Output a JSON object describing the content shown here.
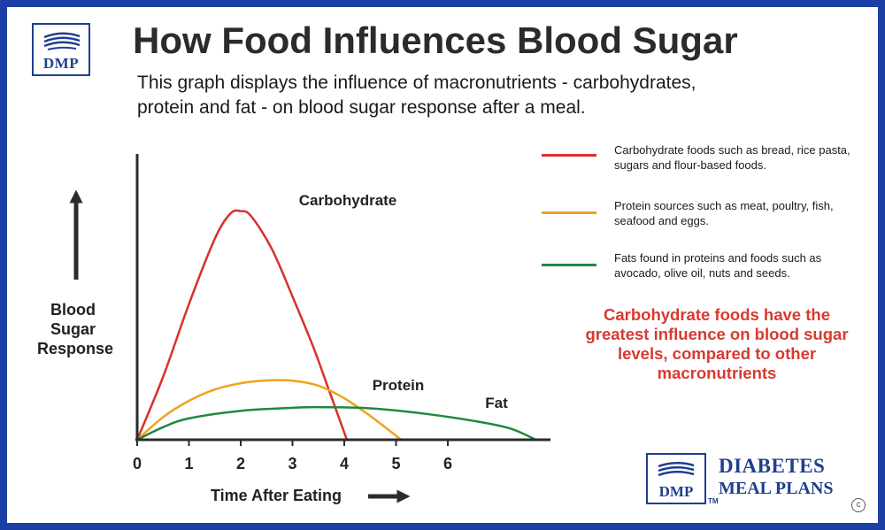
{
  "title": "How Food Influences Blood Sugar",
  "subtitle": "This graph displays the influence of macronutrients - carbohydrates, protein and fat - on blood sugar response after a meal.",
  "logo": {
    "mark": "DMP",
    "brand_line1": "DIABETES",
    "brand_line2": "MEAL PLANS",
    "trademark": "TM",
    "copyright": "c"
  },
  "colors": {
    "carbohydrate": "#d8302b",
    "protein": "#f0a21f",
    "fat": "#1e8a3c",
    "frame": "#1b3fa6",
    "brand": "#1f3f8f",
    "callout": "#d83a2f"
  },
  "legend": [
    {
      "key": "carbohydrate",
      "text": "Carbohydrate foods such as bread, rice pasta, sugars and flour-based foods."
    },
    {
      "key": "protein",
      "text": "Protein sources such as meat, poultry, fish, seafood and eggs."
    },
    {
      "key": "fat",
      "text": "Fats found in proteins and foods such as avocado, olive oil, nuts and seeds."
    }
  ],
  "callout": "Carbohydrate foods have the greatest influence on blood sugar levels, compared to other macronutrients",
  "chart_data": {
    "type": "line",
    "xlabel": "Time After Eating",
    "ylabel": "Blood Sugar Response",
    "xticks": [
      "0",
      "1",
      "2",
      "3",
      "4",
      "5",
      "6"
    ],
    "xlim": [
      0,
      7.7
    ],
    "ylim": [
      0,
      100
    ],
    "grid": false,
    "legend_position": "right",
    "series": [
      {
        "name": "Carbohydrate",
        "key": "carbohydrate",
        "points": [
          [
            0,
            0
          ],
          [
            0.5,
            25
          ],
          [
            1,
            54
          ],
          [
            1.5,
            80
          ],
          [
            1.8,
            90
          ],
          [
            2,
            91
          ],
          [
            2.2,
            89
          ],
          [
            2.6,
            76
          ],
          [
            3,
            57
          ],
          [
            3.4,
            37
          ],
          [
            3.7,
            20
          ],
          [
            4.05,
            0
          ]
        ]
      },
      {
        "name": "Protein",
        "key": "protein",
        "points": [
          [
            0,
            0
          ],
          [
            0.5,
            9
          ],
          [
            1,
            15.5
          ],
          [
            1.5,
            20
          ],
          [
            2,
            22.5
          ],
          [
            2.5,
            23.6
          ],
          [
            3,
            23.5
          ],
          [
            3.5,
            21.5
          ],
          [
            4,
            16.5
          ],
          [
            4.5,
            9.5
          ],
          [
            5.1,
            0
          ]
        ]
      },
      {
        "name": "Fat",
        "key": "fat",
        "points": [
          [
            0,
            0
          ],
          [
            0.5,
            5
          ],
          [
            1,
            8.5
          ],
          [
            2,
            11.5
          ],
          [
            3,
            12.7
          ],
          [
            3.5,
            13
          ],
          [
            4.5,
            12.5
          ],
          [
            5.5,
            10.5
          ],
          [
            6.5,
            7.5
          ],
          [
            7.2,
            4.5
          ],
          [
            7.7,
            0
          ]
        ]
      }
    ]
  }
}
